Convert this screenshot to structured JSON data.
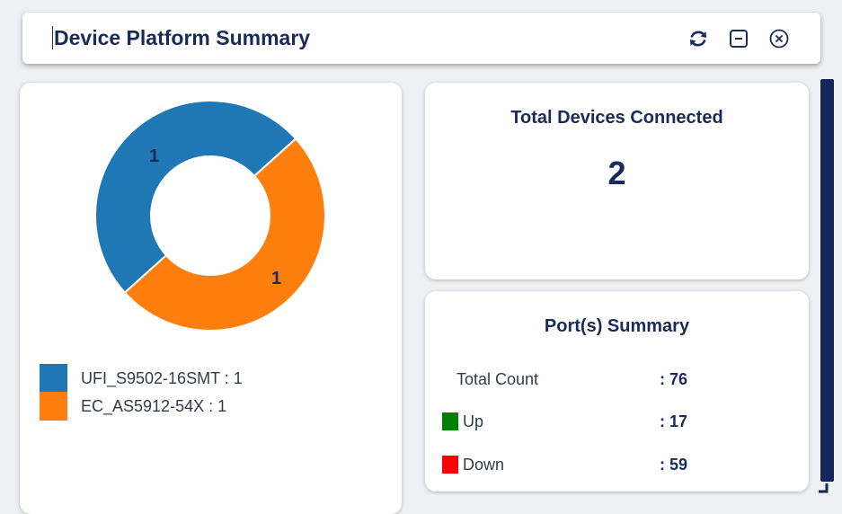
{
  "header": {
    "title": "Device Platform Summary",
    "icons": [
      "refresh-icon",
      "minimize-icon",
      "close-circle-icon"
    ]
  },
  "platform_chart": {
    "chart_data": {
      "type": "pie",
      "donut": true,
      "categories": [
        "UFI_S9502-16SMT",
        "EC_AS5912-54X"
      ],
      "values": [
        1,
        1
      ],
      "colors": [
        "#1f77b4",
        "#ff7f0e"
      ],
      "slice_labels": [
        "1",
        "1"
      ],
      "legend_placement": "bottom-left"
    },
    "legend": [
      {
        "label": "UFI_S9502-16SMT : 1",
        "color": "#1f77b4"
      },
      {
        "label": "EC_AS5912-54X : 1",
        "color": "#ff7f0e"
      }
    ]
  },
  "total_devices": {
    "title": "Total Devices Connected",
    "count": "2"
  },
  "ports": {
    "title": "Port(s) Summary",
    "rows": [
      {
        "label": "Total Count",
        "value": ": 76",
        "color": ""
      },
      {
        "label": "Up",
        "value": ": 17",
        "color": "#008000"
      },
      {
        "label": "Down",
        "value": ": 59",
        "color": "#ff0000"
      }
    ]
  },
  "colors": {
    "accent": "#1a2a5a",
    "scrollbar": "#14255a"
  }
}
